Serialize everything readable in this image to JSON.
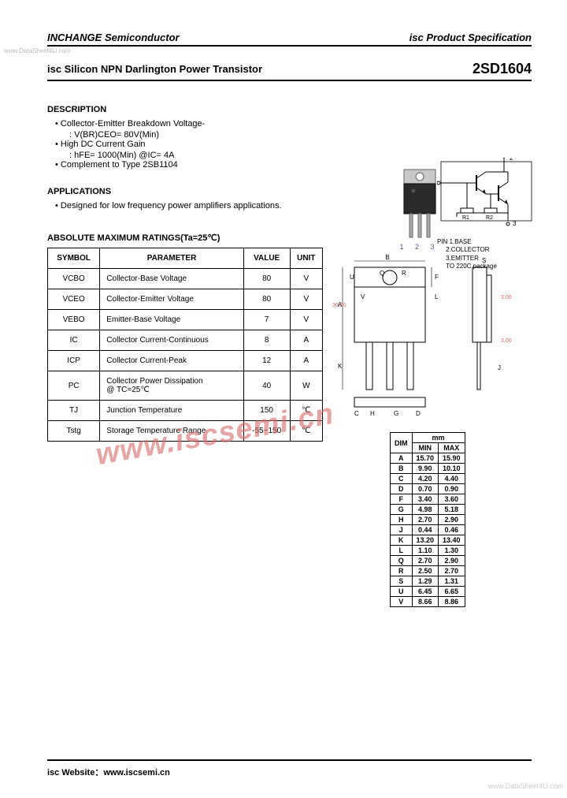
{
  "watermarks": {
    "left": "www.DataSheet4U.com",
    "right": "www.DataSheet4U.com",
    "center": "www.iscsemi.cn"
  },
  "header": {
    "company": "INCHANGE Semiconductor",
    "doc_type": "isc Product Specification"
  },
  "title": {
    "product": "isc Silicon NPN Darlington Power Transistor",
    "part": "2SD1604"
  },
  "description": {
    "heading": "DESCRIPTION",
    "items": [
      "Collector-Emitter Breakdown Voltage-",
      "High DC Current Gain",
      "Complement to Type 2SB1104"
    ],
    "sub1": ": V(BR)CEO= 80V(Min)",
    "sub2": ": hFE= 1000(Min) @IC= 4A"
  },
  "applications": {
    "heading": "APPLICATIONS",
    "text": "Designed for low frequency power amplifiers applications."
  },
  "package": {
    "pin_nums": "1 2 3",
    "pin_text_title": "PIN",
    "pin_text_1": "1.BASE",
    "pin_text_2": "2.COLLECTOR",
    "pin_text_3": "3.EMITTER",
    "pin_text_pkg": "TO 220C package"
  },
  "ratings": {
    "heading": "ABSOLUTE MAXIMUM RATINGS(Ta=25℃)",
    "cols": {
      "c1": "SYMBOL",
      "c2": "PARAMETER",
      "c3": "VALUE",
      "c4": "UNIT"
    },
    "rows": [
      {
        "sym": "VCBO",
        "param": "Collector-Base Voltage",
        "val": "80",
        "unit": "V"
      },
      {
        "sym": "VCEO",
        "param": "Collector-Emitter Voltage",
        "val": "80",
        "unit": "V"
      },
      {
        "sym": "VEBO",
        "param": "Emitter-Base Voltage",
        "val": "7",
        "unit": "V"
      },
      {
        "sym": "IC",
        "param": "Collector Current-Continuous",
        "val": "8",
        "unit": "A"
      },
      {
        "sym": "ICP",
        "param": "Collector Current-Peak",
        "val": "12",
        "unit": "A"
      },
      {
        "sym": "PC",
        "param": "Collector Power Dissipation\n@ TC=25℃",
        "val": "40",
        "unit": "W"
      },
      {
        "sym": "TJ",
        "param": "Junction Temperature",
        "val": "150",
        "unit": "℃"
      },
      {
        "sym": "Tstg",
        "param": "Storage Temperature Range",
        "val": "-55~150",
        "unit": "℃"
      }
    ]
  },
  "dimensions": {
    "unit_hdr": "mm",
    "cols": {
      "dim": "DIM",
      "min": "MIN",
      "max": "MAX"
    },
    "rows": [
      {
        "d": "A",
        "min": "15.70",
        "max": "15.90"
      },
      {
        "d": "B",
        "min": "9.90",
        "max": "10.10"
      },
      {
        "d": "C",
        "min": "4.20",
        "max": "4.40"
      },
      {
        "d": "D",
        "min": "0.70",
        "max": "0.90"
      },
      {
        "d": "F",
        "min": "3.40",
        "max": "3.60"
      },
      {
        "d": "G",
        "min": "4.98",
        "max": "5.18"
      },
      {
        "d": "H",
        "min": "2.70",
        "max": "2.90"
      },
      {
        "d": "J",
        "min": "0.44",
        "max": "0.46"
      },
      {
        "d": "K",
        "min": "13.20",
        "max": "13.40"
      },
      {
        "d": "L",
        "min": "1.10",
        "max": "1.30"
      },
      {
        "d": "Q",
        "min": "2.70",
        "max": "2.90"
      },
      {
        "d": "R",
        "min": "2.50",
        "max": "2.70"
      },
      {
        "d": "S",
        "min": "1.29",
        "max": "1.31"
      },
      {
        "d": "U",
        "min": "6.45",
        "max": "6.65"
      },
      {
        "d": "V",
        "min": "8.66",
        "max": "8.86"
      }
    ]
  },
  "mech": {
    "dim_A": "30.00",
    "dim_3a": "3.00",
    "dim_3b": "3.00"
  },
  "footer": "isc Website：www.iscsemi.cn",
  "style": {
    "text_color": "#000000",
    "wm_color": "#d46a6a",
    "border_color": "#000000"
  }
}
